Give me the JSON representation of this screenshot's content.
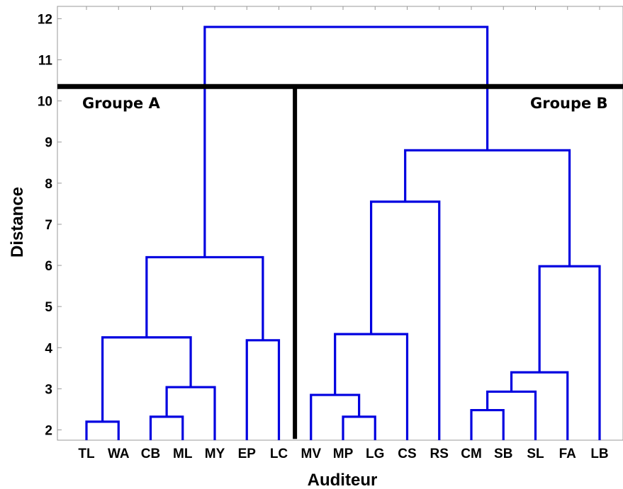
{
  "chart_data": {
    "type": "dendrogram",
    "xlabel": "Auditeur",
    "ylabel": "Distance",
    "ylim": [
      1.75,
      12.3
    ],
    "yticks": [
      2,
      3,
      4,
      5,
      6,
      7,
      8,
      9,
      10,
      11,
      12
    ],
    "leaves": [
      "TL",
      "WA",
      "CB",
      "ML",
      "MY",
      "EP",
      "LC",
      "MV",
      "MP",
      "LG",
      "CS",
      "RS",
      "CM",
      "SB",
      "SL",
      "FA",
      "LB"
    ],
    "merges": [
      {
        "left": "TL",
        "right": "WA",
        "height": 2.2
      },
      {
        "left": "CB",
        "right": "ML",
        "height": 2.32
      },
      {
        "left": "CB+ML",
        "right": "MY",
        "height": 3.04
      },
      {
        "left": "TL+WA",
        "right": "CB+ML+MY",
        "height": 4.25
      },
      {
        "left": "EP",
        "right": "LC",
        "height": 4.18
      },
      {
        "left": "TL..MY",
        "right": "EP+LC",
        "height": 6.2
      },
      {
        "left": "MP",
        "right": "LG",
        "height": 2.32
      },
      {
        "left": "MV",
        "right": "MP+LG",
        "height": 2.85
      },
      {
        "left": "MV+MP+LG",
        "right": "CS",
        "height": 4.33
      },
      {
        "left": "MV..CS",
        "right": "RS",
        "height": 7.55
      },
      {
        "left": "CM",
        "right": "SB",
        "height": 2.48
      },
      {
        "left": "CM+SB",
        "right": "SL",
        "height": 2.93
      },
      {
        "left": "CM+SB+SL",
        "right": "FA",
        "height": 3.4
      },
      {
        "left": "CM..FA",
        "right": "LB",
        "height": 5.98
      },
      {
        "left": "MV..RS",
        "right": "CM..LB",
        "height": 8.8
      },
      {
        "left": "Groupe A",
        "right": "Groupe B",
        "height": 11.8
      }
    ],
    "cut_height": 10.35,
    "groups": [
      "Groupe A",
      "Groupe B"
    ],
    "line_color": "#0000e0",
    "cut_color": "#000000"
  }
}
